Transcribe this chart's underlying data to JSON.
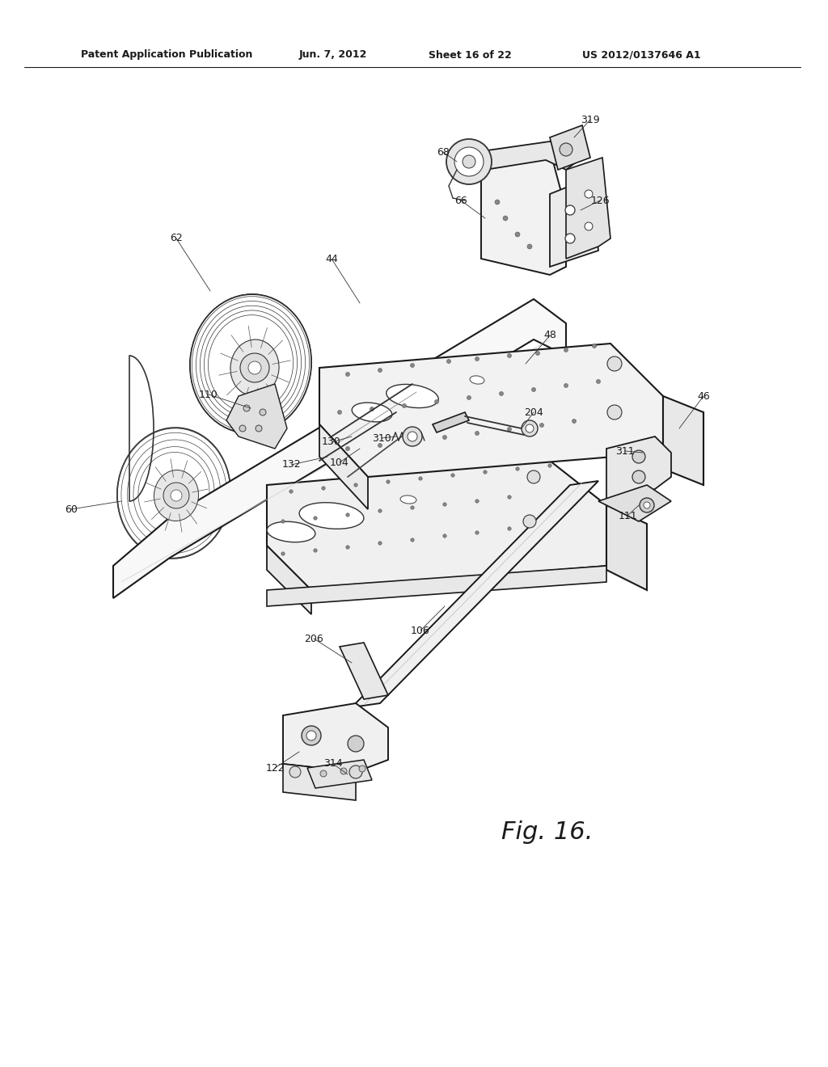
{
  "bg_color": "#ffffff",
  "line_color": "#1a1a1a",
  "header_text": "Patent Application Publication",
  "header_date": "Jun. 7, 2012",
  "header_sheet": "Sheet 16 of 22",
  "header_patent": "US 2012/0137646 A1",
  "fig_label": "Fig. 16.",
  "lw_main": 1.3,
  "lw_thick": 2.0,
  "lw_thin": 0.7,
  "lw_hair": 0.4,
  "wheel_lw": 1.2,
  "label_fs": 9.0,
  "header_fs": 9.0
}
